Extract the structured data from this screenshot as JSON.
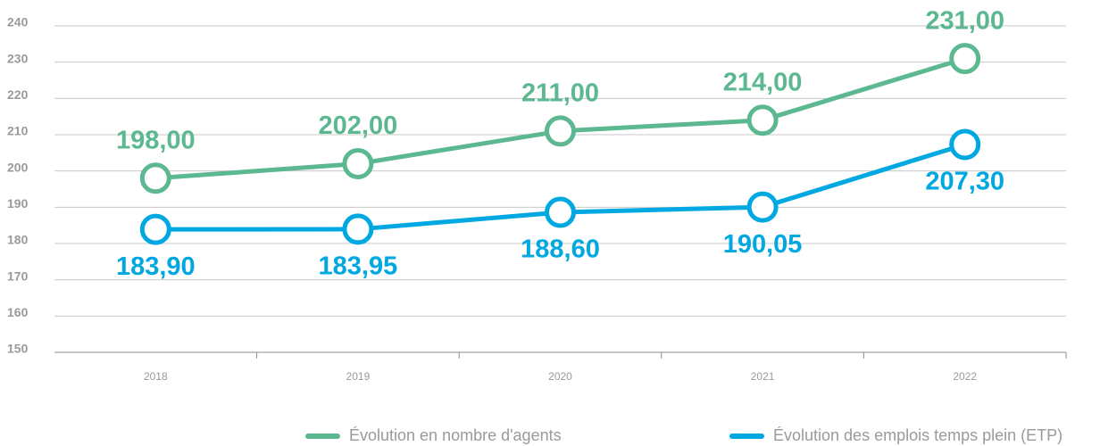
{
  "chart_data": {
    "type": "line",
    "categories": [
      "2018",
      "2019",
      "2020",
      "2021",
      "2022"
    ],
    "series": [
      {
        "name": "Évolution en nombre d'agents",
        "color": "#5bb891",
        "values": [
          198,
          202,
          211,
          214,
          231
        ],
        "value_labels": [
          "198,00",
          "202,00",
          "211,00",
          "214,00",
          "231,00"
        ]
      },
      {
        "name": "Évolution des emplois temps plein (ETP)",
        "color": "#00a8e1",
        "values": [
          183.9,
          183.95,
          188.6,
          190.05,
          207.3
        ],
        "value_labels": [
          "183,90",
          "183,95",
          "188,60",
          "190,05",
          "207,30"
        ]
      }
    ],
    "ylim": [
      150,
      240
    ],
    "yticks": [
      150,
      160,
      170,
      180,
      190,
      200,
      210,
      220,
      230,
      240
    ],
    "grid": true,
    "legend": "bottom"
  }
}
